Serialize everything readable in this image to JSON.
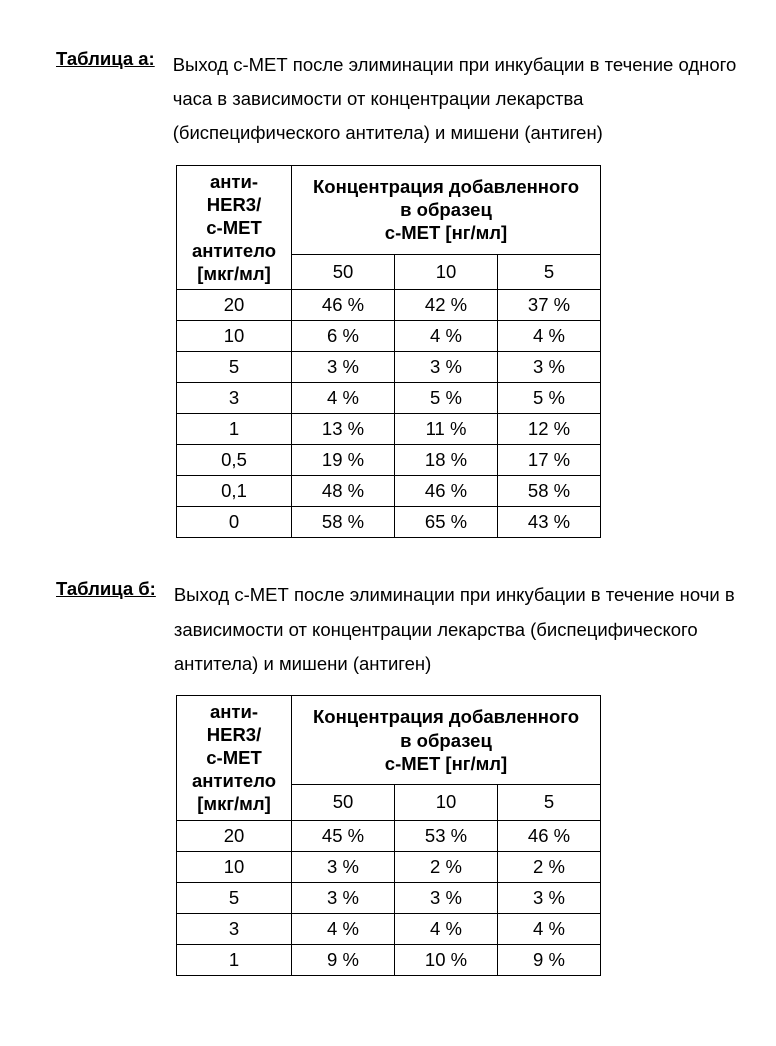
{
  "tableA": {
    "label": "Таблица а:",
    "caption": "Выход с-МЕТ после элиминации при инкубации в течение одного часа в зависимости от концентрации лекарства (биспецифического антитела) и мишени (антиген)",
    "rowHeaderLine1": "анти-",
    "rowHeaderLine2": "HER3/",
    "rowHeaderLine3": "с-МЕТ",
    "rowHeaderLine4": "антитело",
    "rowHeaderLine5": "[мкг/мл]",
    "groupHeaderLine1": "Концентрация добавленного",
    "groupHeaderLine2": "в образец",
    "groupHeaderLine3": "с-МЕТ [нг/мл]",
    "subhead1": "50",
    "subhead2": "10",
    "subhead3": "5",
    "rows": [
      {
        "c0": "20",
        "c1": "46 %",
        "c2": "42 %",
        "c3": "37 %"
      },
      {
        "c0": "10",
        "c1": "6 %",
        "c2": "4 %",
        "c3": "4 %"
      },
      {
        "c0": "5",
        "c1": "3 %",
        "c2": "3 %",
        "c3": "3 %"
      },
      {
        "c0": "3",
        "c1": "4 %",
        "c2": "5 %",
        "c3": "5 %"
      },
      {
        "c0": "1",
        "c1": "13 %",
        "c2": "11 %",
        "c3": "12 %"
      },
      {
        "c0": "0,5",
        "c1": "19 %",
        "c2": "18 %",
        "c3": "17 %"
      },
      {
        "c0": "0,1",
        "c1": "48 %",
        "c2": "46 %",
        "c3": "58 %"
      },
      {
        "c0": "0",
        "c1": "58 %",
        "c2": "65 %",
        "c3": "43 %"
      }
    ]
  },
  "tableB": {
    "label": "Таблица б:",
    "caption": "Выход с-МЕТ после элиминации при инкубации в течение ночи в зависимости от концентрации лекарства (биспецифического антитела) и мишени (антиген)",
    "rowHeaderLine1": "анти-",
    "rowHeaderLine2": "HER3/",
    "rowHeaderLine3": "с-МЕТ",
    "rowHeaderLine4": "антитело",
    "rowHeaderLine5": "[мкг/мл]",
    "groupHeaderLine1": "Концентрация добавленного",
    "groupHeaderLine2": "в образец",
    "groupHeaderLine3": "с-МЕТ [нг/мл]",
    "subhead1": "50",
    "subhead2": "10",
    "subhead3": "5",
    "rows": [
      {
        "c0": "20",
        "c1": "45 %",
        "c2": "53 %",
        "c3": "46 %"
      },
      {
        "c0": "10",
        "c1": "3 %",
        "c2": "2 %",
        "c3": "2 %"
      },
      {
        "c0": "5",
        "c1": "3 %",
        "c2": "3 %",
        "c3": "3 %"
      },
      {
        "c0": "3",
        "c1": "4 %",
        "c2": "4 %",
        "c3": "4 %"
      },
      {
        "c0": "1",
        "c1": "9 %",
        "c2": "10 %",
        "c3": "9 %"
      }
    ]
  }
}
